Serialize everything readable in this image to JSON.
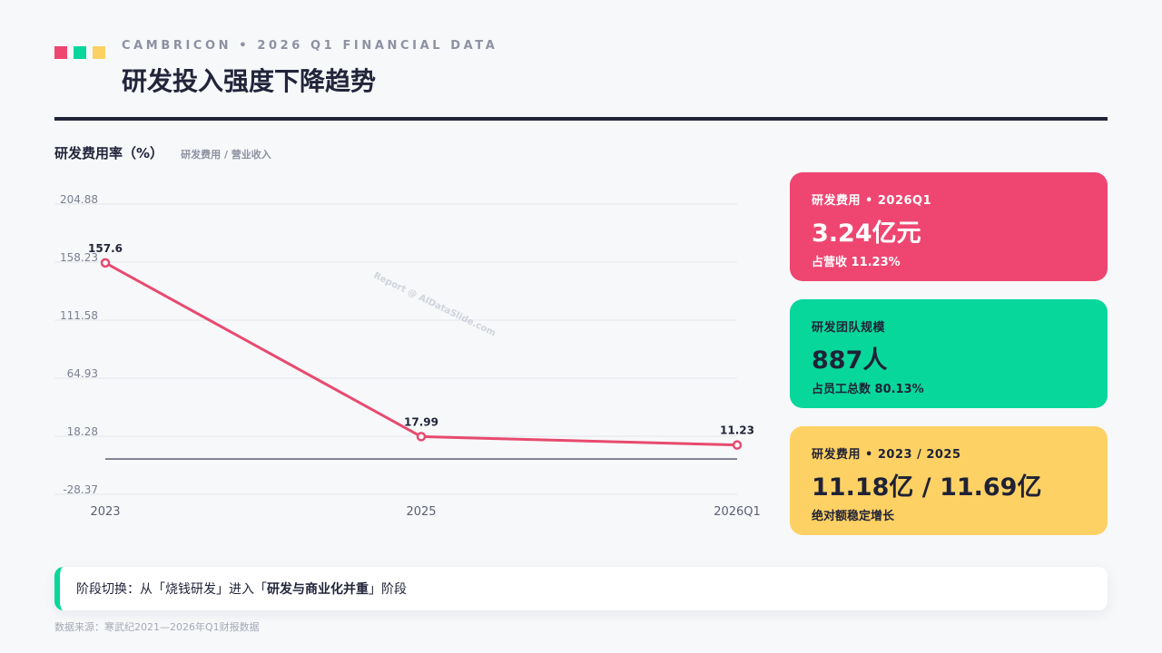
{
  "header": {
    "eyebrow": "CAMBRICON • 2026 Q1 FINANCIAL DATA",
    "title": "研发投入强度下降趋势",
    "square_colors": [
      "#ef4671",
      "#08d79c",
      "#fed164"
    ]
  },
  "chart_data": {
    "type": "line",
    "title": "研发费用率（%）",
    "subtitle": "研发费用 / 营业收入",
    "categories": [
      "2023",
      "2025",
      "2026Q1"
    ],
    "series": [
      {
        "values": [
          157.6,
          17.99,
          11.23
        ],
        "color": "#e84a6f"
      }
    ],
    "data_labels": [
      "157.6",
      "17.99",
      "11.23"
    ],
    "yticks": [
      -28.37,
      18.28,
      64.93,
      111.58,
      158.23,
      204.88
    ],
    "ytick_labels": [
      "-28.37",
      "18.28",
      "64.93",
      "111.58",
      "158.23",
      "204.88"
    ],
    "ylim": [
      -28.37,
      204.88
    ],
    "baseline": 0,
    "grid": true,
    "watermark": "Report @ AIDataSlide.com"
  },
  "cards": [
    {
      "label": "研发费用 • 2026Q1",
      "value": "3.24亿元",
      "note": "占营收 11.23%",
      "color": "#ef4671"
    },
    {
      "label": "研发团队规模",
      "value": "887人",
      "note": "占员工总数 80.13%",
      "color": "#08d79c"
    },
    {
      "label": "研发费用 • 2023 / 2025",
      "value": "11.18亿 / 11.69亿",
      "note": "绝对额稳定增长",
      "color": "#fed164"
    }
  ],
  "note": {
    "prefix": "阶段切换：从「烧钱研发」进入「",
    "emphasis": "研发与商业化并重",
    "suffix": "」阶段",
    "accent": "#08d79c"
  },
  "source": "数据来源：寒武纪2021—2026年Q1财报数据"
}
